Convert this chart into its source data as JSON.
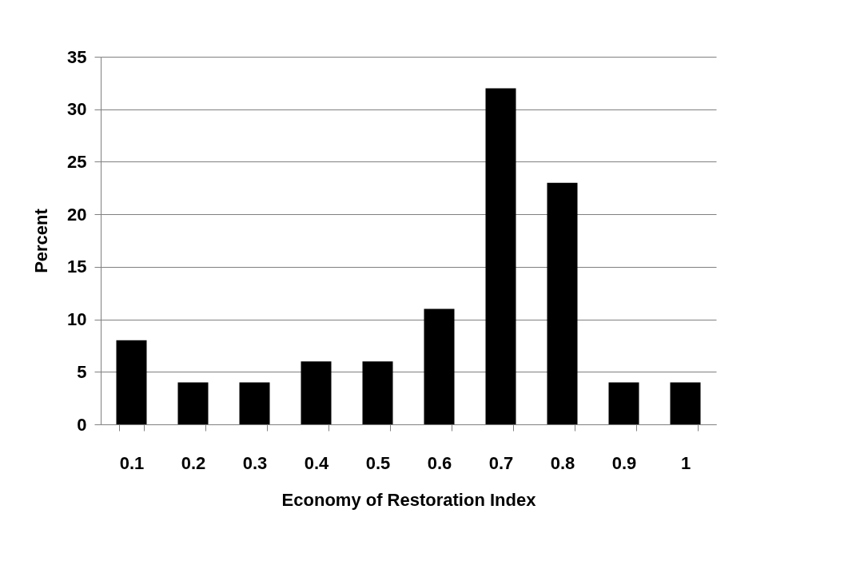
{
  "chart_data": {
    "type": "bar",
    "xlabel": "Economy of Restoration Index",
    "ylabel": "Percent",
    "categories": [
      "0.1",
      "0.2",
      "0.3",
      "0.4",
      "0.5",
      "0.6",
      "0.7",
      "0.8",
      "0.9",
      "1"
    ],
    "values": [
      8,
      4,
      4,
      6,
      6,
      11,
      32,
      23,
      4,
      4
    ],
    "color": "#000000",
    "ylim": [
      0,
      35
    ],
    "yticks": [
      0,
      5,
      10,
      15,
      20,
      25,
      30,
      35
    ],
    "grid": "y"
  }
}
